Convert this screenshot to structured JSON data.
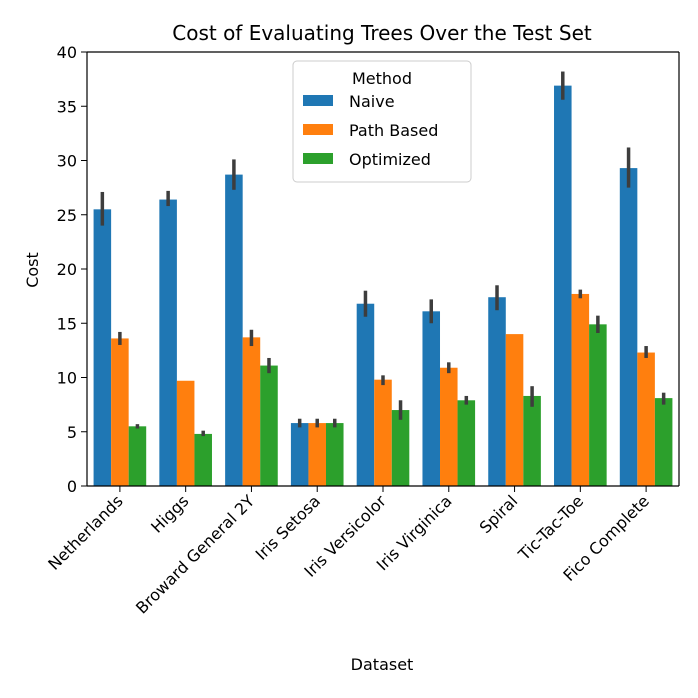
{
  "chart_data": {
    "type": "bar",
    "title": "Cost of Evaluating Trees Over the Test Set",
    "xlabel": "Dataset",
    "ylabel": "Cost",
    "ylim": [
      0,
      40
    ],
    "yticks": [
      0,
      5,
      10,
      15,
      20,
      25,
      30,
      35,
      40
    ],
    "categories": [
      "Netherlands",
      "Higgs",
      "Broward General 2Y",
      "Iris Setosa",
      "Iris Versicolor",
      "Iris Virginica",
      "Spiral",
      "Tic-Tac-Toe",
      "Fico Complete"
    ],
    "legend": {
      "title": "Method",
      "placement": "top-center"
    },
    "series": [
      {
        "name": "Naive",
        "color": "#1f77b4",
        "values": [
          25.5,
          26.4,
          28.7,
          5.8,
          16.8,
          16.1,
          17.4,
          36.9,
          29.3
        ],
        "err_low": [
          24.0,
          25.8,
          27.3,
          5.4,
          15.6,
          15.0,
          16.2,
          35.6,
          27.5
        ],
        "err_high": [
          27.1,
          27.2,
          30.1,
          6.2,
          18.0,
          17.2,
          18.5,
          38.2,
          31.2
        ]
      },
      {
        "name": "Path Based",
        "color": "#ff7f0e",
        "values": [
          13.6,
          9.7,
          13.7,
          5.8,
          9.8,
          10.9,
          14.0,
          17.7,
          12.3
        ],
        "err_low": [
          13.0,
          9.7,
          12.9,
          5.4,
          9.3,
          10.4,
          14.0,
          17.3,
          11.8
        ],
        "err_high": [
          14.2,
          9.7,
          14.4,
          6.2,
          10.2,
          11.4,
          14.0,
          18.1,
          12.9
        ]
      },
      {
        "name": "Optimized",
        "color": "#2ca02c",
        "values": [
          5.5,
          4.8,
          11.1,
          5.8,
          7.0,
          7.9,
          8.3,
          14.9,
          8.1
        ],
        "err_low": [
          5.3,
          4.6,
          10.4,
          5.4,
          6.1,
          7.5,
          7.3,
          14.1,
          7.5
        ],
        "err_high": [
          5.7,
          5.1,
          11.8,
          6.2,
          7.9,
          8.3,
          9.2,
          15.7,
          8.6
        ]
      }
    ]
  }
}
